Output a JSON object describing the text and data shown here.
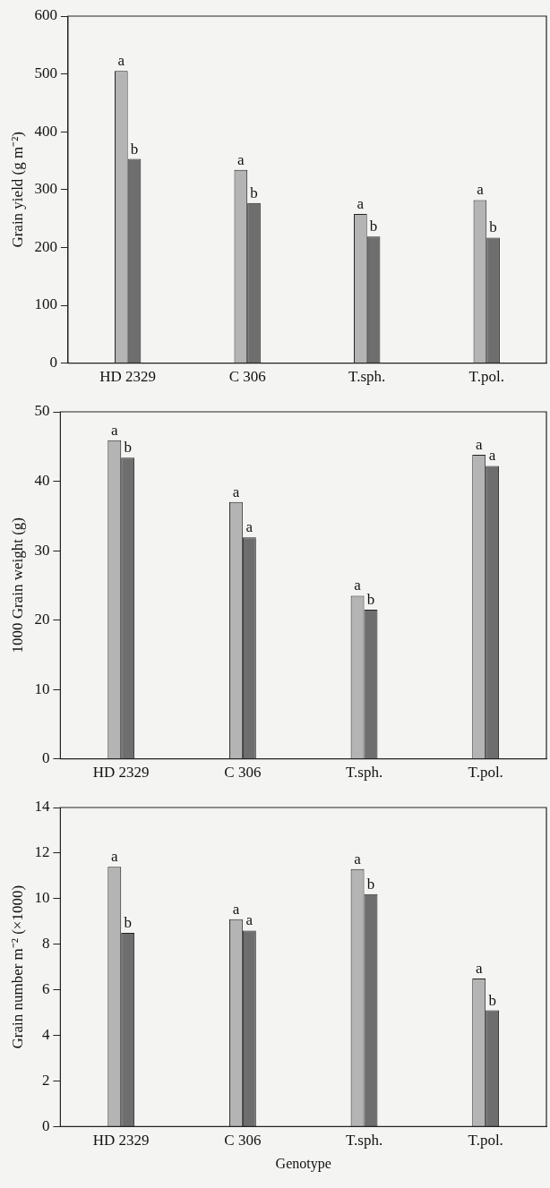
{
  "chart_data": [
    {
      "type": "bar",
      "ylabel": "Grain yield (g m⁻²)",
      "categories": [
        "HD 2329",
        "C 306",
        "T.sph.",
        "T.pol."
      ],
      "series": [
        {
          "color": "#b4b4b4",
          "values": [
            505,
            334,
            258,
            282
          ]
        },
        {
          "color": "#6e6e6e",
          "values": [
            353,
            277,
            219,
            217
          ]
        }
      ],
      "ylim": [
        0,
        600
      ],
      "yticks": [
        0,
        100,
        200,
        300,
        400,
        500,
        600
      ],
      "grid": false,
      "legend": false,
      "annotations": [
        {
          "text": "a",
          "x": "HD 2329",
          "y": 505
        },
        {
          "text": "b",
          "x": "HD 2329",
          "y": 353
        },
        {
          "text": "a",
          "x": "C 306",
          "y": 334
        },
        {
          "text": "b",
          "x": "C 306",
          "y": 277
        },
        {
          "text": "a",
          "x": "T.sph.",
          "y": 258
        },
        {
          "text": "b",
          "x": "T.sph.",
          "y": 219
        },
        {
          "text": "a",
          "x": "T.pol.",
          "y": 282
        },
        {
          "text": "b",
          "x": "T.pol.",
          "y": 217
        }
      ]
    },
    {
      "type": "bar",
      "ylabel": "1000 Grain weight (g)",
      "categories": [
        "HD 2329",
        "C 306",
        "T.sph.",
        "T.pol."
      ],
      "series": [
        {
          "color": "#b4b4b4",
          "values": [
            45.9,
            37.0,
            23.5,
            43.8
          ]
        },
        {
          "color": "#6e6e6e",
          "values": [
            43.4,
            31.9,
            21.5,
            42.2
          ]
        }
      ],
      "ylim": [
        0,
        50
      ],
      "yticks": [
        0,
        10,
        20,
        30,
        40,
        50
      ],
      "grid": false,
      "legend": false,
      "annotations": [
        {
          "text": "a",
          "x": "HD 2329",
          "y": 45.9
        },
        {
          "text": "b",
          "x": "HD 2329",
          "y": 43.4
        },
        {
          "text": "a",
          "x": "C 306",
          "y": 37.0
        },
        {
          "text": "a",
          "x": "C 306",
          "y": 31.9
        },
        {
          "text": "a",
          "x": "T.sph.",
          "y": 23.5
        },
        {
          "text": "b",
          "x": "T.sph.",
          "y": 21.5
        },
        {
          "text": "a",
          "x": "T.pol.",
          "y": 43.8
        },
        {
          "text": "a",
          "x": "T.pol.",
          "y": 42.2
        }
      ]
    },
    {
      "type": "bar",
      "xlabel": "Genotype",
      "ylabel": "Grain number m⁻² (×1000)",
      "categories": [
        "HD 2329",
        "C 306",
        "T.sph.",
        "T.pol."
      ],
      "series": [
        {
          "color": "#b4b4b4",
          "values": [
            11.4,
            9.1,
            11.3,
            6.5
          ]
        },
        {
          "color": "#6e6e6e",
          "values": [
            8.5,
            8.6,
            10.2,
            5.1
          ]
        }
      ],
      "ylim": [
        0,
        14
      ],
      "yticks": [
        0,
        2,
        4,
        6,
        8,
        10,
        12,
        14
      ],
      "grid": false,
      "legend": false,
      "annotations": [
        {
          "text": "a",
          "x": "HD 2329",
          "y": 11.4
        },
        {
          "text": "b",
          "x": "HD 2329",
          "y": 8.5
        },
        {
          "text": "a",
          "x": "C 306",
          "y": 9.1
        },
        {
          "text": "a",
          "x": "C 306",
          "y": 8.6
        },
        {
          "text": "a",
          "x": "T.sph.",
          "y": 11.3
        },
        {
          "text": "b",
          "x": "T.sph.",
          "y": 10.2
        },
        {
          "text": "a",
          "x": "T.pol.",
          "y": 6.5
        },
        {
          "text": "b",
          "x": "T.pol.",
          "y": 5.1
        }
      ]
    }
  ]
}
